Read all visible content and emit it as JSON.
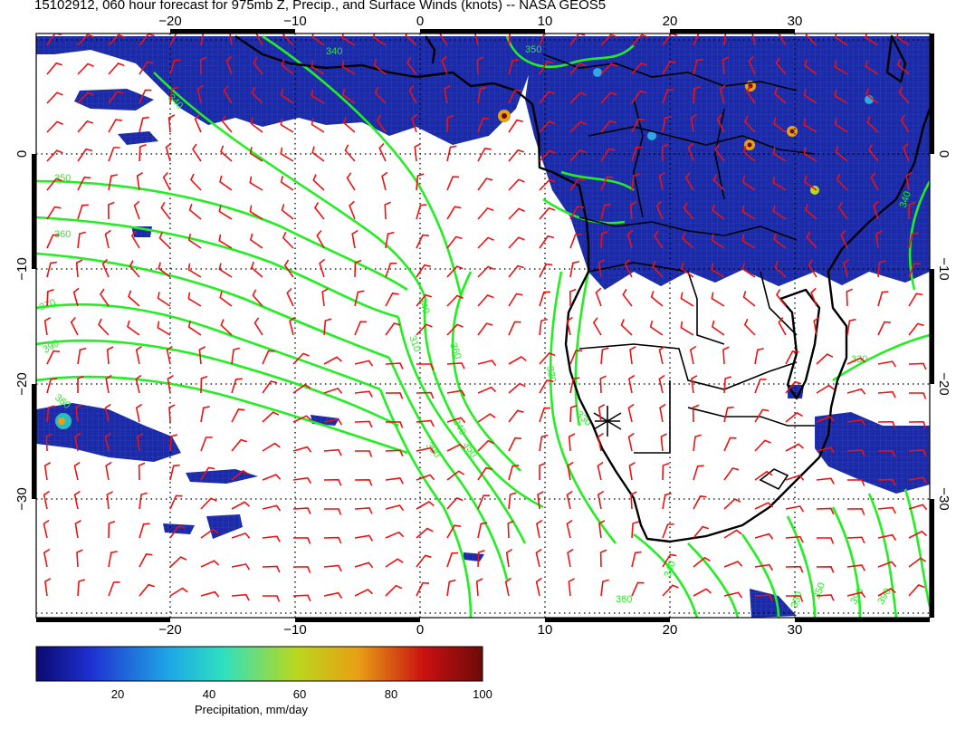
{
  "title": "15102912, 060 hour forecast for 975mb Z, Precip., and Surface Winds (knots) -- NASA GEOS5",
  "map": {
    "lon_ticks": [
      "−20",
      "−10",
      "0",
      "10",
      "20",
      "30"
    ],
    "lat_ticks": [
      "0",
      "−10",
      "−20",
      "−30"
    ],
    "contour_color": "#22ee22",
    "barb_color": "#ee1111",
    "coast_color": "#000000",
    "precip_color": "#1a2aa8",
    "contour_labels": [
      "340",
      "350",
      "360",
      "370",
      "390",
      "360",
      "340",
      "350",
      "340",
      "310",
      "360",
      "390",
      "340",
      "350",
      "330",
      "330",
      "340",
      "360",
      "350",
      "390",
      "390",
      "350",
      "330",
      "340"
    ],
    "marker_icon": "asterisk-marker"
  },
  "colorbar": {
    "ticks": [
      "20",
      "40",
      "60",
      "80",
      "100"
    ],
    "range": [
      0,
      100
    ],
    "stops": [
      "#0a0a6e",
      "#1f2fd0",
      "#1fa8e6",
      "#2fe0c0",
      "#b8d81e",
      "#e8a014",
      "#c81010",
      "#6e0a0a"
    ],
    "label": "Precipitation, mm/day"
  }
}
